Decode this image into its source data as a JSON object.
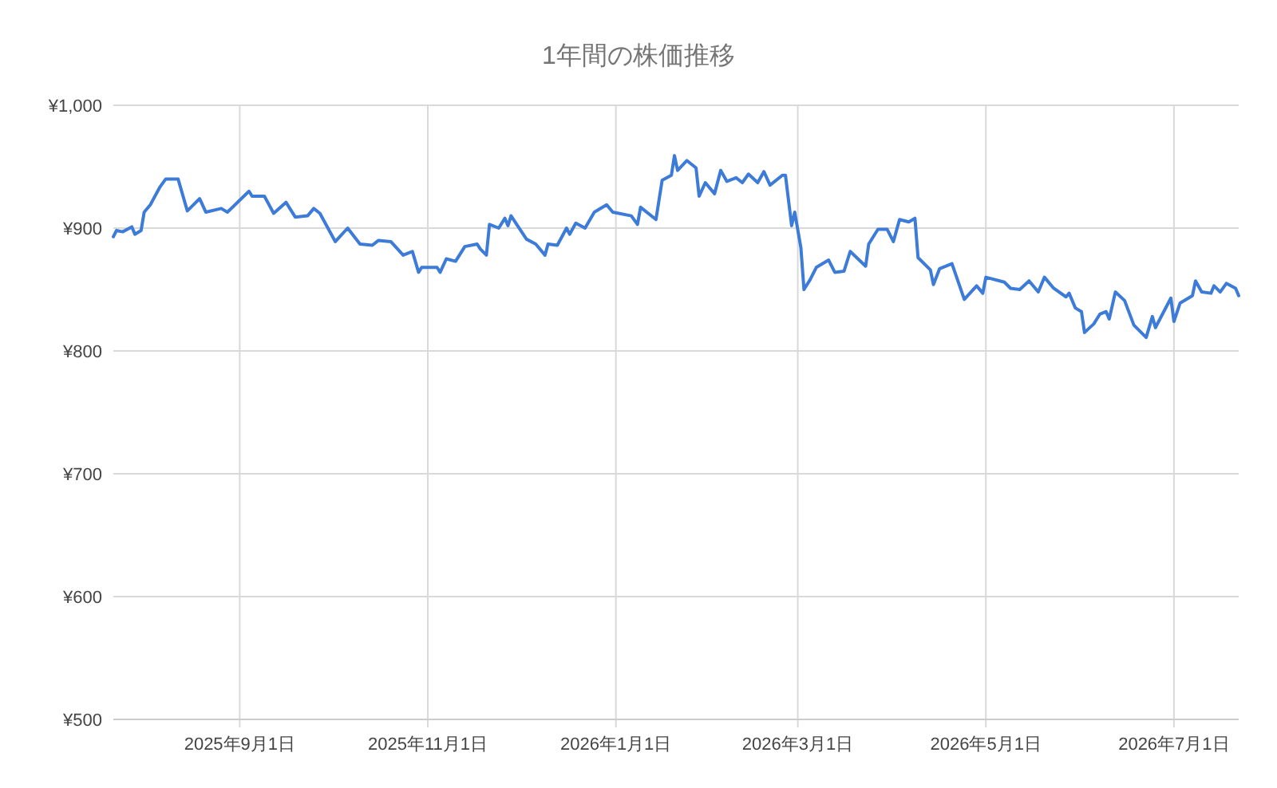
{
  "chart_data": {
    "type": "line",
    "title": "1年間の株価推移",
    "x": [
      "2025-07-22",
      "2025-07-23",
      "2025-07-25",
      "2025-07-28",
      "2025-07-29",
      "2025-07-31",
      "2025-08-01",
      "2025-08-03",
      "2025-08-06",
      "2025-08-08",
      "2025-08-12",
      "2025-08-15",
      "2025-08-19",
      "2025-08-21",
      "2025-08-26",
      "2025-08-28",
      "2025-09-04",
      "2025-09-05",
      "2025-09-09",
      "2025-09-12",
      "2025-09-16",
      "2025-09-19",
      "2025-09-23",
      "2025-09-25",
      "2025-09-27",
      "2025-10-02",
      "2025-10-06",
      "2025-10-10",
      "2025-10-14",
      "2025-10-16",
      "2025-10-20",
      "2025-10-24",
      "2025-10-27",
      "2025-10-29",
      "2025-10-30",
      "2025-11-04",
      "2025-11-05",
      "2025-11-07",
      "2025-11-10",
      "2025-11-13",
      "2025-11-17",
      "2025-11-18",
      "2025-11-20",
      "2025-11-21",
      "2025-11-24",
      "2025-11-26",
      "2025-11-27",
      "2025-11-28",
      "2025-12-03",
      "2025-12-06",
      "2025-12-09",
      "2025-12-10",
      "2025-12-13",
      "2025-12-16",
      "2025-12-17",
      "2025-12-19",
      "2025-12-22",
      "2025-12-25",
      "2025-12-29",
      "2025-12-31",
      "2026-01-06",
      "2026-01-08",
      "2026-01-09",
      "2026-01-14",
      "2026-01-16",
      "2026-01-19",
      "2026-01-20",
      "2026-01-21",
      "2026-01-24",
      "2026-01-27",
      "2026-01-28",
      "2026-01-30",
      "2026-02-02",
      "2026-02-04",
      "2026-02-06",
      "2026-02-09",
      "2026-02-11",
      "2026-02-13",
      "2026-02-16",
      "2026-02-18",
      "2026-02-20",
      "2026-02-24",
      "2026-02-25",
      "2026-02-27",
      "2026-02-28",
      "2026-03-02",
      "2026-03-03",
      "2026-03-05",
      "2026-03-07",
      "2026-03-11",
      "2026-03-13",
      "2026-03-16",
      "2026-03-18",
      "2026-03-23",
      "2026-03-24",
      "2026-03-27",
      "2026-03-30",
      "2026-04-01",
      "2026-04-03",
      "2026-04-06",
      "2026-04-08",
      "2026-04-09",
      "2026-04-13",
      "2026-04-14",
      "2026-04-16",
      "2026-04-20",
      "2026-04-24",
      "2026-04-28",
      "2026-04-30",
      "2026-05-01",
      "2026-05-07",
      "2026-05-09",
      "2026-05-12",
      "2026-05-15",
      "2026-05-18",
      "2026-05-20",
      "2026-05-23",
      "2026-05-27",
      "2026-05-28",
      "2026-05-30",
      "2026-06-01",
      "2026-06-02",
      "2026-06-05",
      "2026-06-07",
      "2026-06-09",
      "2026-06-10",
      "2026-06-12",
      "2026-06-15",
      "2026-06-18",
      "2026-06-22",
      "2026-06-24",
      "2026-06-25",
      "2026-06-30",
      "2026-07-01",
      "2026-07-03",
      "2026-07-07",
      "2026-07-08",
      "2026-07-10",
      "2026-07-13",
      "2026-07-14",
      "2026-07-16",
      "2026-07-18",
      "2026-07-21",
      "2026-07-22"
    ],
    "values": [
      893,
      898,
      897,
      901,
      895,
      898,
      913,
      919,
      933,
      940,
      940,
      914,
      924,
      913,
      916,
      913,
      930,
      926,
      926,
      912,
      921,
      909,
      910,
      916,
      912,
      889,
      900,
      887,
      886,
      890,
      889,
      878,
      881,
      864,
      868,
      868,
      864,
      875,
      873,
      885,
      887,
      883,
      878,
      903,
      900,
      908,
      902,
      910,
      891,
      887,
      878,
      887,
      886,
      900,
      895,
      904,
      900,
      913,
      919,
      913,
      910,
      903,
      917,
      907,
      939,
      943,
      959,
      947,
      955,
      949,
      926,
      937,
      928,
      947,
      938,
      941,
      937,
      944,
      937,
      946,
      935,
      943,
      943,
      902,
      913,
      884,
      850,
      858,
      868,
      874,
      864,
      865,
      881,
      869,
      887,
      899,
      899,
      889,
      907,
      905,
      908,
      876,
      866,
      854,
      867,
      871,
      842,
      853,
      847,
      860,
      856,
      851,
      850,
      857,
      848,
      860,
      851,
      844,
      847,
      835,
      832,
      815,
      822,
      830,
      832,
      826,
      848,
      841,
      821,
      811,
      828,
      819,
      843,
      824,
      839,
      845,
      857,
      848,
      847,
      853,
      848,
      855,
      851,
      845
    ],
    "color": "#3d7bd9",
    "xlim": [
      "2025-07-22",
      "2026-07-22"
    ],
    "xticks": [
      {
        "value": "2025-09-01",
        "label": "2025年9月1日"
      },
      {
        "value": "2025-11-01",
        "label": "2025年11月1日"
      },
      {
        "value": "2026-01-01",
        "label": "2026年1月1日"
      },
      {
        "value": "2026-03-01",
        "label": "2026年3月1日"
      },
      {
        "value": "2026-05-01",
        "label": "2026年5月1日"
      },
      {
        "value": "2026-07-01",
        "label": "2026年7月1日"
      }
    ],
    "ylim": [
      500,
      1000
    ],
    "yticks": [
      {
        "value": 500,
        "label": "¥500"
      },
      {
        "value": 600,
        "label": "¥600"
      },
      {
        "value": 700,
        "label": "¥700"
      },
      {
        "value": 800,
        "label": "¥800"
      },
      {
        "value": 900,
        "label": "¥900"
      },
      {
        "value": 1000,
        "label": "¥1,000"
      }
    ],
    "grid": true
  }
}
